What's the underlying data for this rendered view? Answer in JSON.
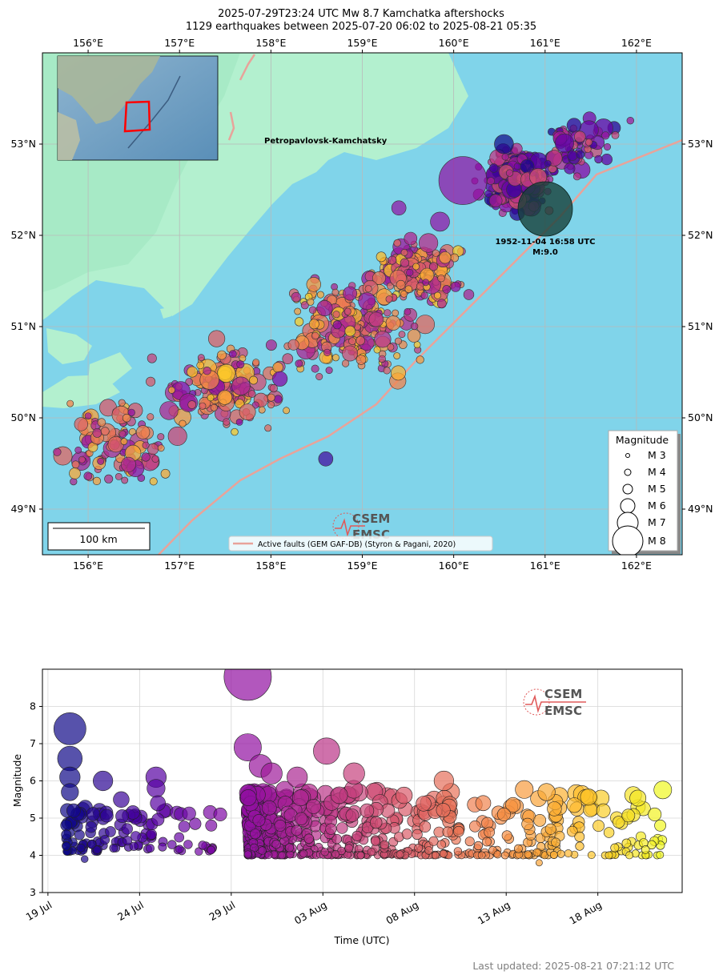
{
  "title": {
    "line1": "2025-07-29T23:24 UTC Mw 8.7 Kamchatka aftershocks",
    "line2": "1129 earthquakes between 2025-07-20 06:02 to 2025-08-21 05:35"
  },
  "map": {
    "lon_ticks": [
      "156°E",
      "157°E",
      "158°E",
      "159°E",
      "160°E",
      "161°E",
      "162°E"
    ],
    "lon_values": [
      156,
      157,
      158,
      159,
      160,
      161,
      162
    ],
    "lat_ticks": [
      "53°N",
      "52°N",
      "51°N",
      "50°N",
      "49°N"
    ],
    "lat_values": [
      53,
      52,
      51,
      50,
      49
    ],
    "lon_range": [
      155.5,
      162.5
    ],
    "lat_range": [
      48.5,
      54.0
    ],
    "colors": {
      "ocean": "#80d4ea",
      "land": "#b3f0cf",
      "land_dark": "#9fe6c0",
      "fault": "#e8a39a",
      "grid": "#b9b9b9"
    },
    "city_label": "Petropavlovsk-Kamchatsky",
    "historic_event": {
      "label_time": "1952-11-04 16:58 UTC",
      "label_mag": "M:9.0",
      "lon": 160.98,
      "lat": 52.3
    },
    "scale_bar": "100 km",
    "fault_legend": "Active faults (GEM GAF-DB) (Styron & Pagani, 2020)",
    "logo_top": "CSEM",
    "logo_bottom": "EMSC",
    "legend": {
      "title": "Magnitude",
      "items": [
        "M 3",
        "M 4",
        "M 5",
        "M 6",
        "M 7",
        "M 8"
      ],
      "mags": [
        3,
        4,
        5,
        6,
        7,
        8
      ]
    },
    "inset_box_color": "#ff0000"
  },
  "timeline": {
    "xlabel": "Time (UTC)",
    "ylabel": "Magnitude",
    "x_ticks": [
      "19 Jul",
      "24 Jul",
      "29 Jul",
      "03 Aug",
      "08 Aug",
      "13 Aug",
      "18 Aug"
    ],
    "x_tick_days": [
      0,
      5,
      10,
      15,
      20,
      25,
      30
    ],
    "y_ticks": [
      "3",
      "4",
      "5",
      "6",
      "7",
      "8"
    ],
    "y_values": [
      3,
      4,
      5,
      6,
      7,
      8
    ],
    "ylim": [
      3,
      9
    ],
    "xlim_days": [
      -0.3,
      34.6
    ],
    "logo_top": "CSEM",
    "logo_bottom": "EMSC"
  },
  "chart_data": {
    "type": "scatter",
    "x_label": "Time (UTC)",
    "y_label": "Magnitude",
    "x_start": "2025-07-19",
    "ylim": [
      3,
      9
    ],
    "points": [
      {
        "x": 1.2,
        "y": 7.4
      },
      {
        "x": 1.2,
        "y": 6.6
      },
      {
        "x": 1.2,
        "y": 6.1
      },
      {
        "x": 1.2,
        "y": 5.7
      },
      {
        "x": 1.4,
        "y": 5.2
      },
      {
        "x": 3.0,
        "y": 6.0
      },
      {
        "x": 4.0,
        "y": 5.5
      },
      {
        "x": 5.9,
        "y": 6.1
      },
      {
        "x": 5.9,
        "y": 5.8
      },
      {
        "x": 6.0,
        "y": 5.4
      },
      {
        "x": 9.4,
        "y": 5.1
      },
      {
        "x": 10.9,
        "y": 8.8
      },
      {
        "x": 10.9,
        "y": 6.9
      },
      {
        "x": 11.6,
        "y": 6.4
      },
      {
        "x": 12.2,
        "y": 6.2
      },
      {
        "x": 13.6,
        "y": 6.1
      },
      {
        "x": 15.2,
        "y": 6.8
      },
      {
        "x": 16.7,
        "y": 6.2
      },
      {
        "x": 21.6,
        "y": 6.0
      },
      {
        "x": 27.2,
        "y": 5.7
      },
      {
        "x": 30.3,
        "y": 5.2
      },
      {
        "x": 33.1,
        "y": 5.1
      },
      {
        "x": 26.8,
        "y": 3.8
      },
      {
        "x": 2.0,
        "y": 3.9
      }
    ]
  },
  "footer": "Last updated: 2025-08-21 07:21:12 UTC"
}
